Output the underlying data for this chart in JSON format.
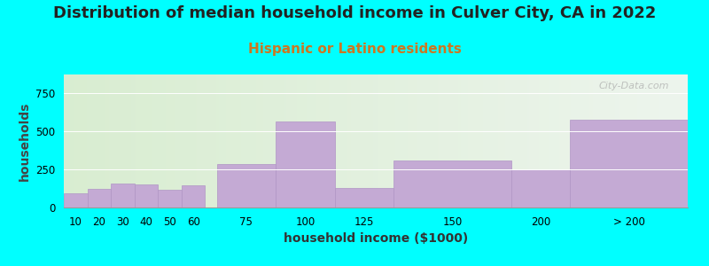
{
  "title": "Distribution of median household income in Culver City, CA in 2022",
  "subtitle": "Hispanic or Latino residents",
  "xlabel": "household income ($1000)",
  "ylabel": "households",
  "background_color": "#00FFFF",
  "bar_color": "#c4aad4",
  "bar_edge_color": "#b095c5",
  "categories": [
    "10",
    "20",
    "30",
    "40",
    "50",
    "60",
    "75",
    "100",
    "125",
    "150",
    "200",
    "> 200"
  ],
  "values": [
    90,
    120,
    155,
    150,
    115,
    145,
    285,
    560,
    130,
    305,
    250,
    575
  ],
  "ylim": [
    0,
    870
  ],
  "yticks": [
    0,
    250,
    500,
    750
  ],
  "title_fontsize": 13,
  "subtitle_fontsize": 11,
  "subtitle_color": "#cc7722",
  "axis_label_fontsize": 10,
  "tick_fontsize": 8.5,
  "watermark": "City-Data.com",
  "plot_bg_left": "#d8ecd0",
  "plot_bg_right": "#e8f0e8"
}
